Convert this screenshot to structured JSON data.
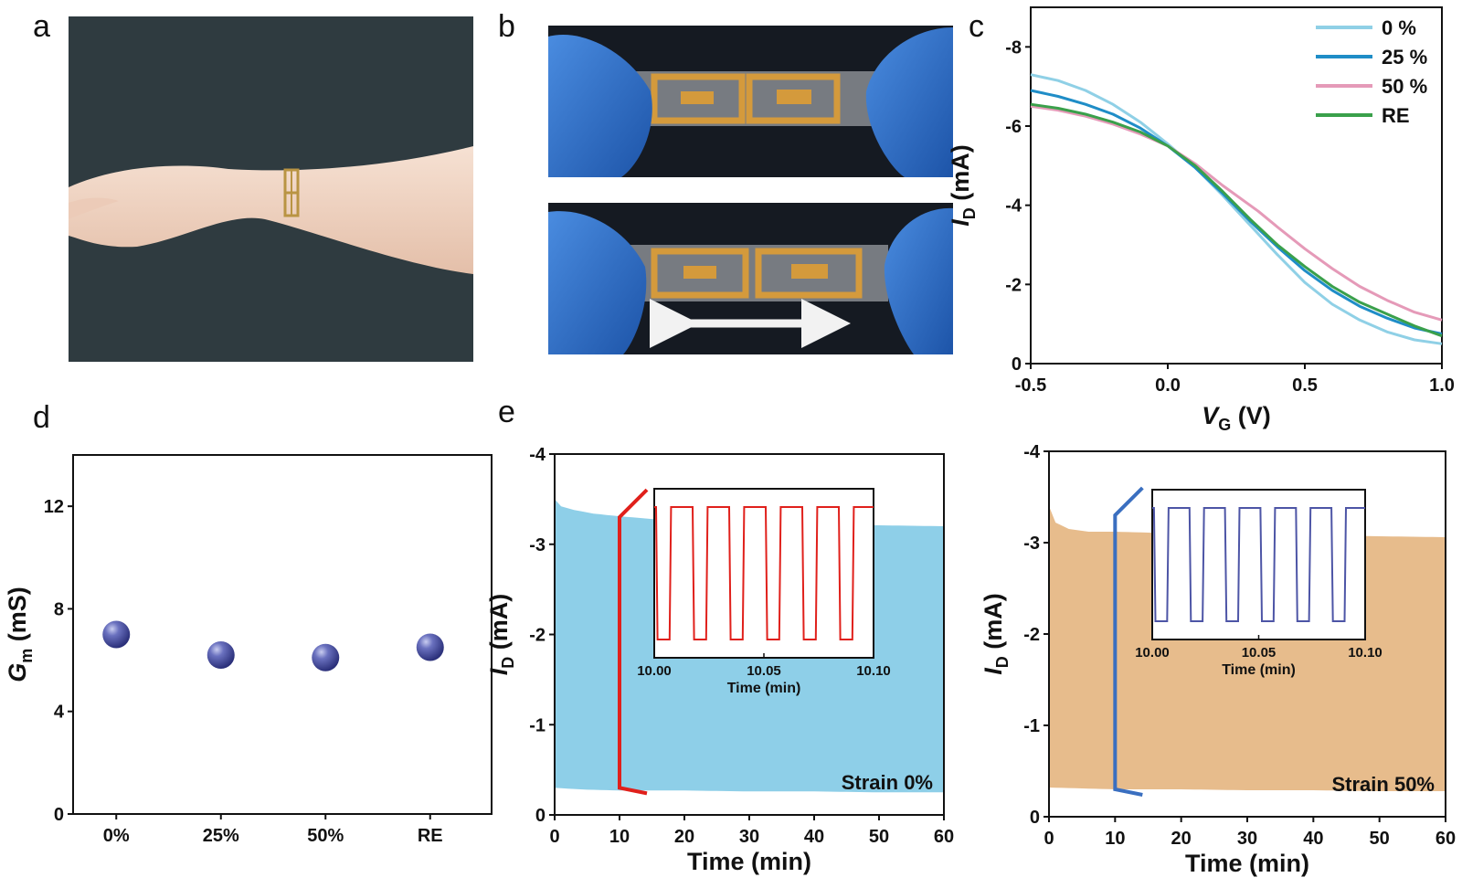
{
  "panels": {
    "a": "a",
    "b": "b",
    "c": "c",
    "d": "d",
    "e": "e"
  },
  "photos": {
    "wrist": {
      "bg": "#2f3b40",
      "skin": "#f1d6c6",
      "device": "#b99443"
    },
    "stretch": {
      "bg": "#151a22",
      "glove": "#2f72d0",
      "device": "#d49a3c",
      "film": "#c8ccd0",
      "arrow": "#f2f2f2"
    }
  },
  "chart_data": [
    {
      "panel": "c",
      "type": "line",
      "xlabel": {
        "main": "V",
        "sub": "G",
        "unit": "(V)"
      },
      "ylabel": {
        "main": "I",
        "sub": "D",
        "unit": "(mA)"
      },
      "xlim": [
        -0.5,
        1.0
      ],
      "ylim": [
        0,
        -9
      ],
      "xticks": [
        "-0.5",
        "0.0",
        "0.5",
        "1.0"
      ],
      "yticks": [
        "0",
        "-2",
        "-4",
        "-6",
        "-8"
      ],
      "legend_position": "top-right",
      "series": [
        {
          "name": "0  %",
          "color": "#8fd0e6",
          "x": [
            -0.5,
            -0.4,
            -0.3,
            -0.2,
            -0.1,
            0.0,
            0.1,
            0.2,
            0.3,
            0.4,
            0.5,
            0.6,
            0.7,
            0.8,
            0.9,
            1.0
          ],
          "y": [
            -7.3,
            -7.15,
            -6.9,
            -6.55,
            -6.1,
            -5.55,
            -4.95,
            -4.25,
            -3.5,
            -2.75,
            -2.05,
            -1.5,
            -1.1,
            -0.8,
            -0.6,
            -0.5
          ]
        },
        {
          "name": "25 %",
          "color": "#1f8dc7",
          "x": [
            -0.5,
            -0.4,
            -0.3,
            -0.2,
            -0.1,
            0.0,
            0.1,
            0.2,
            0.3,
            0.4,
            0.5,
            0.6,
            0.7,
            0.8,
            0.9,
            1.0
          ],
          "y": [
            -6.9,
            -6.75,
            -6.55,
            -6.3,
            -5.95,
            -5.5,
            -4.95,
            -4.3,
            -3.6,
            -2.95,
            -2.35,
            -1.85,
            -1.45,
            -1.15,
            -0.9,
            -0.75
          ]
        },
        {
          "name": "50 %",
          "color": "#e59ab8",
          "x": [
            -0.5,
            -0.4,
            -0.3,
            -0.2,
            -0.1,
            0.0,
            0.1,
            0.2,
            0.3,
            0.33,
            0.4,
            0.5,
            0.6,
            0.7,
            0.8,
            0.9,
            1.0
          ],
          "y": [
            -6.5,
            -6.4,
            -6.25,
            -6.05,
            -5.8,
            -5.5,
            -5.05,
            -4.5,
            -4.0,
            -3.85,
            -3.45,
            -2.9,
            -2.4,
            -1.95,
            -1.6,
            -1.3,
            -1.1
          ]
        },
        {
          "name": "RE",
          "color": "#3aa04b",
          "x": [
            -0.5,
            -0.4,
            -0.3,
            -0.2,
            -0.1,
            0.0,
            0.1,
            0.2,
            0.3,
            0.4,
            0.5,
            0.6,
            0.7,
            0.8,
            0.9,
            1.0
          ],
          "y": [
            -6.55,
            -6.45,
            -6.3,
            -6.1,
            -5.85,
            -5.5,
            -5.0,
            -4.35,
            -3.65,
            -3.0,
            -2.45,
            -1.95,
            -1.55,
            -1.25,
            -0.95,
            -0.7
          ]
        }
      ]
    },
    {
      "panel": "d",
      "type": "scatter",
      "ylabel": {
        "main": "G",
        "sub": "m",
        "unit": "(mS)"
      },
      "ylim": [
        0,
        14
      ],
      "yticks": [
        "0",
        "4",
        "8",
        "12"
      ],
      "categories": [
        "0%",
        "25%",
        "50%",
        "RE"
      ],
      "values": [
        7.0,
        6.2,
        6.1,
        6.5
      ],
      "marker_color": "#4f56a8"
    },
    {
      "panel": "e-left",
      "type": "area",
      "xlabel": "Time (min)",
      "ylabel": {
        "main": "I",
        "sub": "D",
        "unit": "(mA)"
      },
      "xlim": [
        0,
        60
      ],
      "ylim": [
        0,
        -4
      ],
      "xticks": [
        "0",
        "10",
        "20",
        "30",
        "40",
        "50",
        "60"
      ],
      "yticks": [
        "0",
        "-1",
        "-2",
        "-3",
        "-4"
      ],
      "fill_color": "#8ecfe8",
      "legend": "Strain 0%",
      "envelope_top": {
        "x": [
          0,
          5,
          10,
          20,
          30,
          40,
          50,
          60
        ],
        "y": [
          -0.3,
          -0.28,
          -0.27,
          -0.27,
          -0.26,
          -0.26,
          -0.25,
          -0.25
        ]
      },
      "envelope_bottom": {
        "x": [
          0,
          1,
          3,
          6,
          10,
          15,
          20,
          30,
          40,
          50,
          60
        ],
        "y": [
          -3.5,
          -3.42,
          -3.38,
          -3.34,
          -3.31,
          -3.28,
          -3.26,
          -3.24,
          -3.22,
          -3.21,
          -3.2
        ]
      },
      "inset": {
        "xlabel": "Time (min)",
        "xlim": [
          10.0,
          10.1
        ],
        "xticks": [
          "10.00",
          "10.05",
          "10.10"
        ],
        "on_level": -0.55,
        "off_level": -2.2,
        "cycles": 6,
        "color": "#e0201b"
      },
      "bracket_color": "#e0201b"
    },
    {
      "panel": "e-right",
      "type": "area",
      "xlabel": "Time (min)",
      "ylabel": {
        "main": "I",
        "sub": "D",
        "unit": "(mA)"
      },
      "xlim": [
        0,
        60
      ],
      "ylim": [
        0,
        -4
      ],
      "xticks": [
        "0",
        "10",
        "20",
        "30",
        "40",
        "50",
        "60"
      ],
      "yticks": [
        "0",
        "-1",
        "-2",
        "-3",
        "-4"
      ],
      "fill_color": "#e7bc8c",
      "legend": "Strain 50%",
      "envelope_top": {
        "x": [
          0,
          5,
          10,
          20,
          30,
          40,
          50,
          60
        ],
        "y": [
          -0.32,
          -0.31,
          -0.3,
          -0.3,
          -0.29,
          -0.29,
          -0.28,
          -0.28
        ]
      },
      "envelope_bottom": {
        "x": [
          0,
          1,
          3,
          6,
          10,
          15,
          20,
          30,
          40,
          50,
          60
        ],
        "y": [
          -3.4,
          -3.22,
          -3.15,
          -3.12,
          -3.12,
          -3.11,
          -3.1,
          -3.09,
          -3.08,
          -3.07,
          -3.06
        ]
      },
      "inset": {
        "xlabel": "Time (min)",
        "xlim": [
          10.0,
          10.1
        ],
        "xticks": [
          "10.00",
          "10.05",
          "10.10"
        ],
        "on_level": -0.6,
        "off_level": -2.05,
        "cycles": 6,
        "color": "#4d55a6"
      },
      "bracket_color": "#3a6fc0"
    }
  ]
}
